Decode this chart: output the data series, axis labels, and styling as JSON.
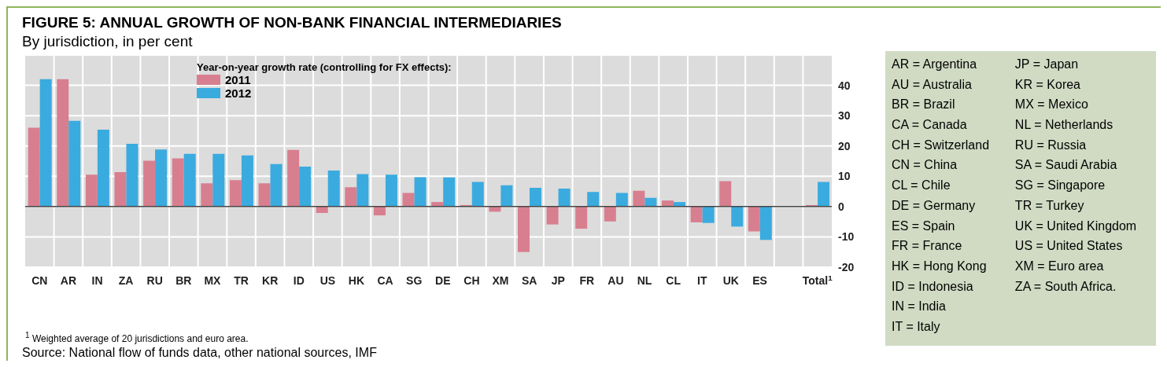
{
  "chart_data": {
    "type": "bar",
    "title": "FIGURE 5: ANNUAL GROWTH OF NON-BANK FINANCIAL INTERMEDIARIES",
    "subtitle": "By jurisdiction, in per cent",
    "legend_title": "Year-on-year growth rate (controlling for FX effects):",
    "categories": [
      "CN",
      "AR",
      "IN",
      "ZA",
      "RU",
      "BR",
      "MX",
      "TR",
      "KR",
      "ID",
      "US",
      "HK",
      "CA",
      "SG",
      "DE",
      "CH",
      "XM",
      "SA",
      "JP",
      "FR",
      "AU",
      "NL",
      "CL",
      "IT",
      "UK",
      "ES",
      null,
      "Total$^{1}$"
    ],
    "series": [
      {
        "name": "2011",
        "color": "#d87f8f",
        "values": [
          26,
          42,
          10.5,
          11.4,
          15.1,
          15.9,
          7.7,
          8.7,
          7.7,
          18.7,
          -2.1,
          6.4,
          -2.9,
          4.5,
          1.5,
          0.5,
          -1.7,
          -15,
          -5.9,
          -7.3,
          -4.9,
          5.2,
          2,
          -5.2,
          8.4,
          -8.2,
          null,
          0.5
        ]
      },
      {
        "name": "2012",
        "color": "#3aabdf",
        "values": [
          42,
          28.3,
          25.4,
          20.7,
          18.8,
          17.4,
          17.4,
          16.9,
          14,
          13.2,
          11.9,
          10.7,
          10.5,
          9.7,
          9.6,
          8.1,
          7,
          6.2,
          5.9,
          4.8,
          4.5,
          2.9,
          1.5,
          -5.4,
          -6.6,
          -11,
          null,
          8.1
        ]
      }
    ],
    "ylim": [
      -20,
      50
    ],
    "yticks": [
      -20,
      -10,
      0,
      10,
      20,
      30,
      40
    ],
    "grid": true,
    "legend": "top",
    "annotations": [
      "$^{1}$ Weighted average of 20 jurisdictions and euro area.",
      "Source: National flow of funds data, other national sources, IMF",
      "AR = Argentina",
      "AU = Australia",
      "BR = Brazil",
      "CA = Canada",
      "CH = Switzerland",
      "CN = China",
      "CL = Chile",
      "DE = Germany",
      "ES = Spain",
      "FR = France",
      "HK = Hong Kong",
      "ID = Indonesia",
      "IN = India",
      "IT = Italy",
      "JP = Japan",
      "KR = Korea",
      "MX = Mexico",
      "NL = Netherlands",
      "RU = Russia",
      "SA = Saudi Arabia",
      "SG = Singapore",
      "TR = Turkey",
      "UK = United Kingdom",
      "US = United States",
      "XM = Euro area",
      "ZA = South Africa."
    ]
  }
}
